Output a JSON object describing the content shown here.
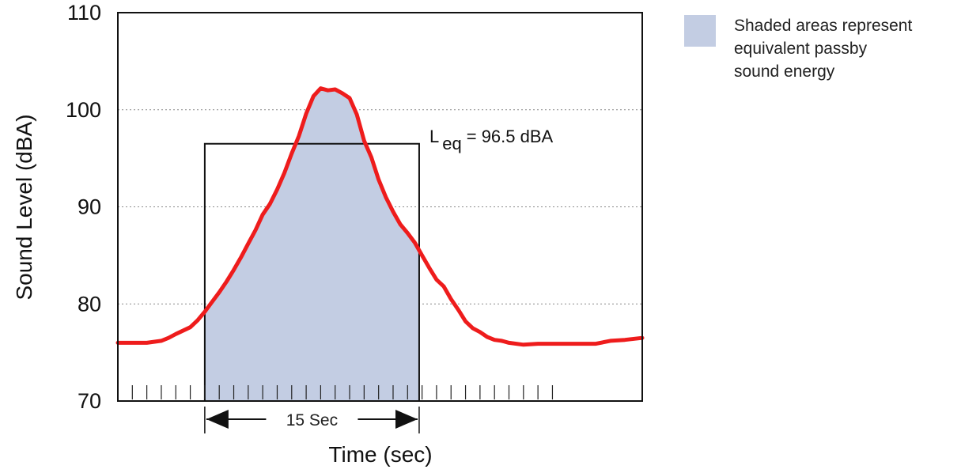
{
  "chart_data": {
    "type": "area",
    "xlabel": "Time (sec)",
    "ylabel": "Sound Level (dBA)",
    "ylim": [
      70,
      110
    ],
    "yticks": [
      70,
      80,
      90,
      100,
      110
    ],
    "xlim": [
      0,
      36.2
    ],
    "grid": "horizontal dotted at 80, 90, 100",
    "legend": {
      "placement": "top-right",
      "swatch_color": "#c3cde3",
      "text_lines": [
        "Shaded areas represent",
        "equivalent passby",
        "sound energy"
      ]
    },
    "series": [
      {
        "color": "#ee1c1c",
        "x": [
          0,
          2,
          3,
          3.5,
          4,
          5,
          5.5,
          6,
          6.5,
          7,
          7.5,
          8,
          8.5,
          9,
          9.5,
          10,
          10.5,
          11,
          11.5,
          12,
          12.5,
          13,
          13.5,
          14,
          14.5,
          15,
          15.5,
          16,
          16.5,
          17,
          17.5,
          18,
          18.5,
          19,
          19.5,
          20,
          20.5,
          21,
          21.5,
          22,
          22.5,
          23,
          23.5,
          24,
          24.5,
          25,
          25.5,
          26,
          26.5,
          27,
          28,
          29,
          30,
          31,
          32,
          33,
          34,
          35,
          36.2
        ],
        "y": [
          76,
          76,
          76.2,
          76.5,
          76.9,
          77.6,
          78.3,
          79.2,
          80.2,
          81.2,
          82.3,
          83.5,
          84.8,
          86.2,
          87.6,
          89.2,
          90.3,
          91.8,
          93.5,
          95.5,
          97.3,
          99.6,
          101.4,
          102.2,
          102,
          102.1,
          101.7,
          101.2,
          99.5,
          96.8,
          95.1,
          92.8,
          91,
          89.5,
          88.2,
          87.3,
          86.3,
          85,
          83.7,
          82.5,
          81.8,
          80.5,
          79.4,
          78.2,
          77.5,
          77.1,
          76.6,
          76.3,
          76.2,
          76,
          75.8,
          75.9,
          75.9,
          75.9,
          75.9,
          75.9,
          76.2,
          76.3,
          76.5
        ]
      }
    ],
    "annotations": {
      "leq_label_main": "L",
      "leq_label_sub": "eq",
      "leq_label_rest": "= 96.5 dBA",
      "leq_value": 96.5,
      "leq_window": [
        6,
        20.8
      ],
      "window_label": "15 Sec",
      "shaded_window": [
        6,
        20.8
      ]
    },
    "minor_ticks_x": {
      "start": 1,
      "step": 1,
      "count": 30
    }
  }
}
